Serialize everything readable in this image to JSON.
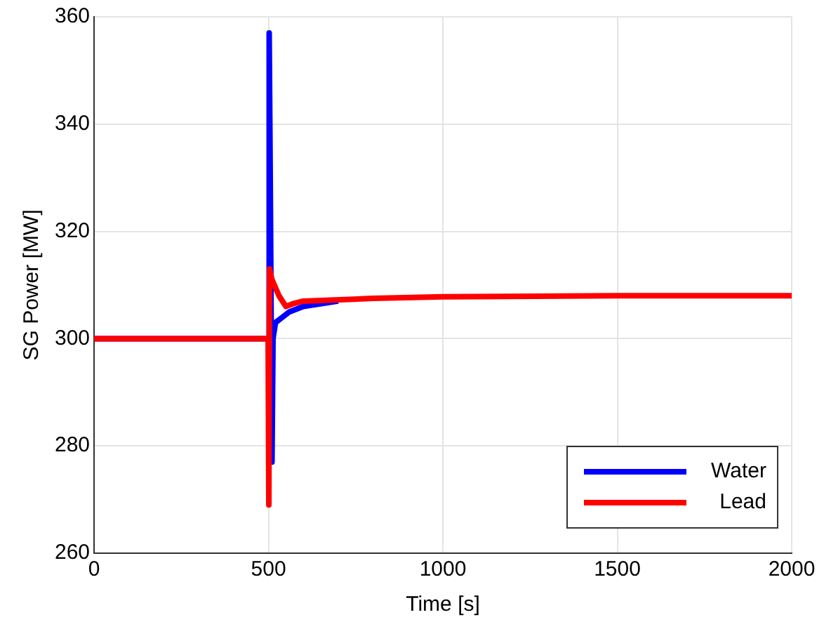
{
  "chart_data": {
    "type": "line",
    "xlabel": "Time [s]",
    "ylabel": "SG Power [MW]",
    "xlim": [
      0,
      2000
    ],
    "xticks": [
      0,
      500,
      1000,
      1500,
      2000
    ],
    "ylim": [
      260,
      360
    ],
    "yticks": [
      260,
      280,
      300,
      320,
      340,
      360
    ],
    "grid": true,
    "legend": "bottom right",
    "marker": "none",
    "line_style": "solid",
    "series": [
      {
        "name": "Water",
        "color": "#0000ff",
        "x": [
          0,
          499,
          502,
          505,
          508,
          510,
          513,
          520,
          540,
          560,
          600,
          700
        ],
        "values": [
          300,
          300,
          357,
          330,
          300,
          277,
          300,
          303,
          304,
          305,
          306,
          307
        ]
      },
      {
        "name": "Lead",
        "color": "#ff0000",
        "x": [
          0,
          499,
          501,
          503,
          510,
          530,
          550,
          570,
          600,
          800,
          1000,
          1500,
          2000
        ],
        "values": [
          300,
          300,
          269,
          313,
          311,
          308,
          306,
          306.5,
          307,
          307.5,
          307.8,
          308,
          308
        ]
      }
    ]
  }
}
